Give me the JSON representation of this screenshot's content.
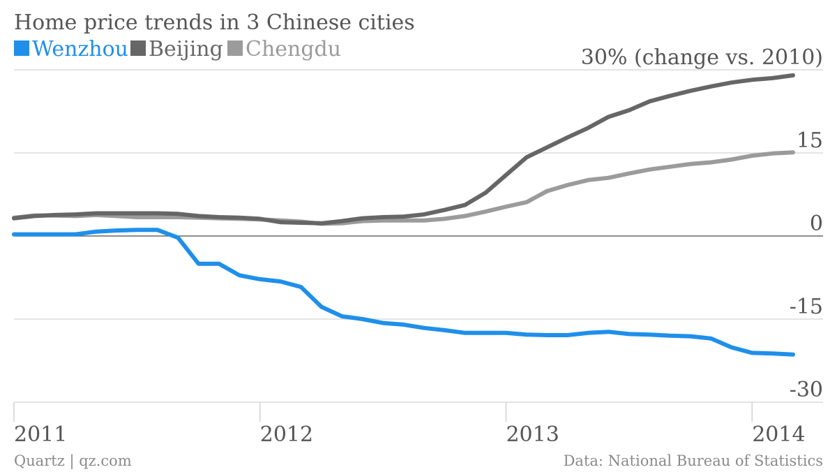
{
  "chart_data": {
    "type": "line",
    "title": "Home price trends in 3 Chinese cities",
    "y_unit_label": "30% (change vs. 2010)",
    "ylim": [
      -30,
      30
    ],
    "yticks": [
      {
        "value": 30,
        "label": "30% (change vs. 2010)"
      },
      {
        "value": 15,
        "label": "15"
      },
      {
        "value": 0,
        "label": "0"
      },
      {
        "value": -15,
        "label": "-15"
      },
      {
        "value": -30,
        "label": "-30"
      }
    ],
    "xlim": [
      "2011-01",
      "2014-03"
    ],
    "xticks": [
      {
        "value": "2011-01",
        "label": "2011"
      },
      {
        "value": "2012-01",
        "label": "2012"
      },
      {
        "value": "2013-01",
        "label": "2013"
      },
      {
        "value": "2014-01",
        "label": "2014"
      }
    ],
    "grid": true,
    "legend_position": "top-left",
    "x": [
      "2011-01",
      "2011-02",
      "2011-03",
      "2011-04",
      "2011-05",
      "2011-06",
      "2011-07",
      "2011-08",
      "2011-09",
      "2011-10",
      "2011-11",
      "2011-12",
      "2012-01",
      "2012-02",
      "2012-03",
      "2012-04",
      "2012-05",
      "2012-06",
      "2012-07",
      "2012-08",
      "2012-09",
      "2012-10",
      "2012-11",
      "2012-12",
      "2013-01",
      "2013-02",
      "2013-03",
      "2013-04",
      "2013-05",
      "2013-06",
      "2013-07",
      "2013-08",
      "2013-09",
      "2013-10",
      "2013-11",
      "2013-12",
      "2014-01",
      "2014-02",
      "2014-03"
    ],
    "series": [
      {
        "name": "Wenzhou",
        "color": "#1f8fea",
        "values": [
          0.3,
          0.3,
          0.3,
          0.3,
          0.8,
          1.0,
          1.1,
          1.1,
          -0.3,
          -5.0,
          -5.0,
          -7.1,
          -7.8,
          -8.2,
          -9.2,
          -12.8,
          -14.5,
          -15.0,
          -15.7,
          -16.0,
          -16.6,
          -17.0,
          -17.5,
          -17.5,
          -17.5,
          -17.8,
          -17.9,
          -17.9,
          -17.5,
          -17.3,
          -17.7,
          -17.8,
          -18.0,
          -18.1,
          -18.5,
          -20.1,
          -21.1,
          -21.2,
          -21.4
        ]
      },
      {
        "name": "Beijing",
        "color": "#666666",
        "values": [
          3.2,
          3.6,
          3.8,
          3.9,
          4.1,
          4.1,
          4.1,
          4.1,
          4.0,
          3.6,
          3.4,
          3.3,
          3.1,
          2.5,
          2.4,
          2.3,
          2.7,
          3.2,
          3.4,
          3.5,
          3.9,
          4.7,
          5.6,
          7.8,
          11.0,
          14.2,
          16.0,
          17.8,
          19.5,
          21.5,
          22.7,
          24.3,
          25.3,
          26.2,
          27.0,
          27.7,
          28.2,
          28.5,
          29.0
        ]
      },
      {
        "name": "Chengdu",
        "color": "#9b9b9b",
        "values": [
          3.3,
          3.7,
          3.7,
          3.6,
          3.8,
          3.6,
          3.4,
          3.4,
          3.4,
          3.3,
          3.2,
          3.1,
          3.0,
          2.8,
          2.6,
          2.2,
          2.3,
          2.7,
          2.8,
          2.8,
          2.8,
          3.1,
          3.6,
          4.4,
          5.3,
          6.1,
          8.1,
          9.2,
          10.1,
          10.5,
          11.3,
          12.0,
          12.5,
          13.0,
          13.3,
          13.8,
          14.5,
          14.9,
          15.1
        ]
      }
    ]
  },
  "footer": {
    "source_left": "Quartz | qz.com",
    "source_right": "Data: National Bureau of Statistics"
  }
}
